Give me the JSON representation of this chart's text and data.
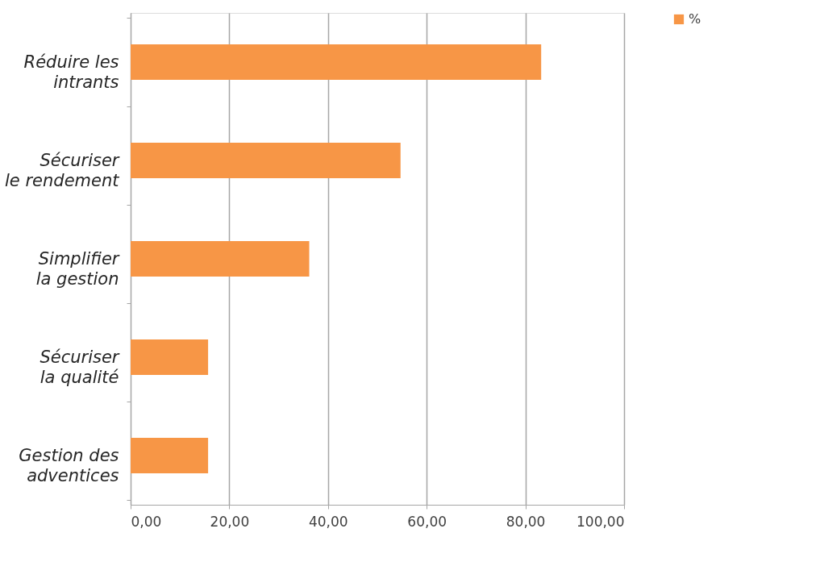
{
  "chart_data": {
    "type": "bar",
    "orientation": "horizontal",
    "categories": [
      "Réduire les intrants",
      "Sécuriser le rendement",
      "Simplifier la gestion",
      "Sécuriser la qualité",
      "Gestion des adventices"
    ],
    "series": [
      {
        "name": "%",
        "color": "#f79646",
        "values": [
          83.2,
          54.7,
          36.2,
          15.7,
          15.7
        ]
      }
    ],
    "xlim": [
      0,
      100
    ],
    "xticks": [
      {
        "value": 0,
        "label": "0,00"
      },
      {
        "value": 20,
        "label": "20,00"
      },
      {
        "value": 40,
        "label": "40,00"
      },
      {
        "value": 60,
        "label": "60,00"
      },
      {
        "value": 80,
        "label": "80,00"
      },
      {
        "value": 100,
        "label": "100,00"
      }
    ],
    "grid": "x",
    "legend": "right"
  }
}
